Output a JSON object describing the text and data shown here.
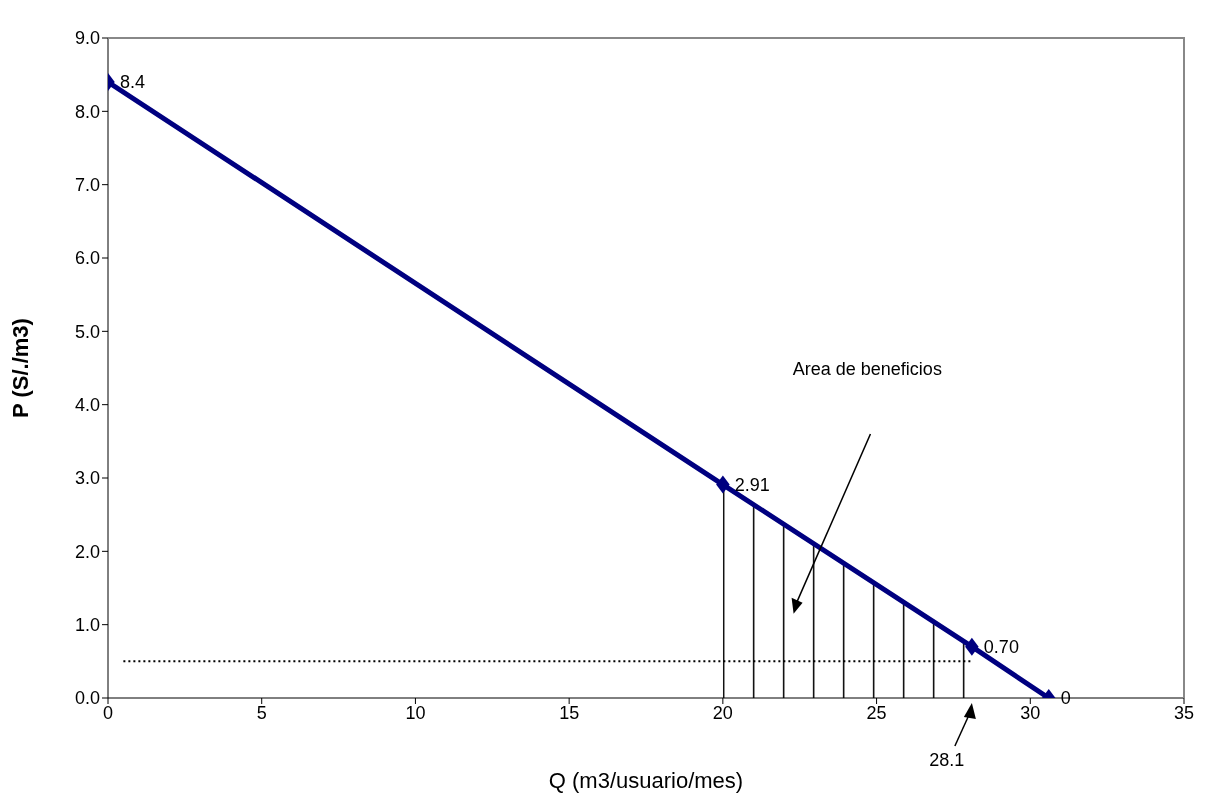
{
  "chart_data": {
    "type": "line",
    "xlabel": "Q (m3/usuario/mes)",
    "ylabel": "P (S/./m3)",
    "xlim": [
      0,
      35
    ],
    "xticks": [
      0,
      5,
      10,
      15,
      20,
      25,
      30,
      35
    ],
    "ylim": [
      0,
      9
    ],
    "yticks": [
      {
        "value": 0,
        "label": "0.0"
      },
      {
        "value": 1,
        "label": "1.0"
      },
      {
        "value": 2,
        "label": "2.0"
      },
      {
        "value": 3,
        "label": "3.0"
      },
      {
        "value": 4,
        "label": "4.0"
      },
      {
        "value": 5,
        "label": "5.0"
      },
      {
        "value": 6,
        "label": "6.0"
      },
      {
        "value": 7,
        "label": "7.0"
      },
      {
        "value": 8,
        "label": "8.0"
      },
      {
        "value": 9,
        "label": "9.0"
      }
    ],
    "marker": "diamond",
    "series": [
      {
        "type": "area",
        "color": "#000000",
        "x": [
          20,
          28.1
        ],
        "values": [
          2.91,
          0.7
        ],
        "marker": "none"
      },
      {
        "type": "line",
        "color": "#000000",
        "x": [
          0.5,
          28.1
        ],
        "values": [
          0.5,
          0.5
        ],
        "line_style": "dotted",
        "marker": "none"
      },
      {
        "color": "#000080",
        "x": [
          0,
          20,
          28.1,
          30.6
        ],
        "values": [
          8.4,
          2.91,
          0.7,
          0
        ],
        "value_labels": [
          "8.4",
          "2.91",
          "0.70",
          "0"
        ]
      }
    ],
    "annotations": [
      "Area de beneficios",
      {
        "text": "28.1",
        "x": 28.1,
        "y": 0
      }
    ]
  }
}
